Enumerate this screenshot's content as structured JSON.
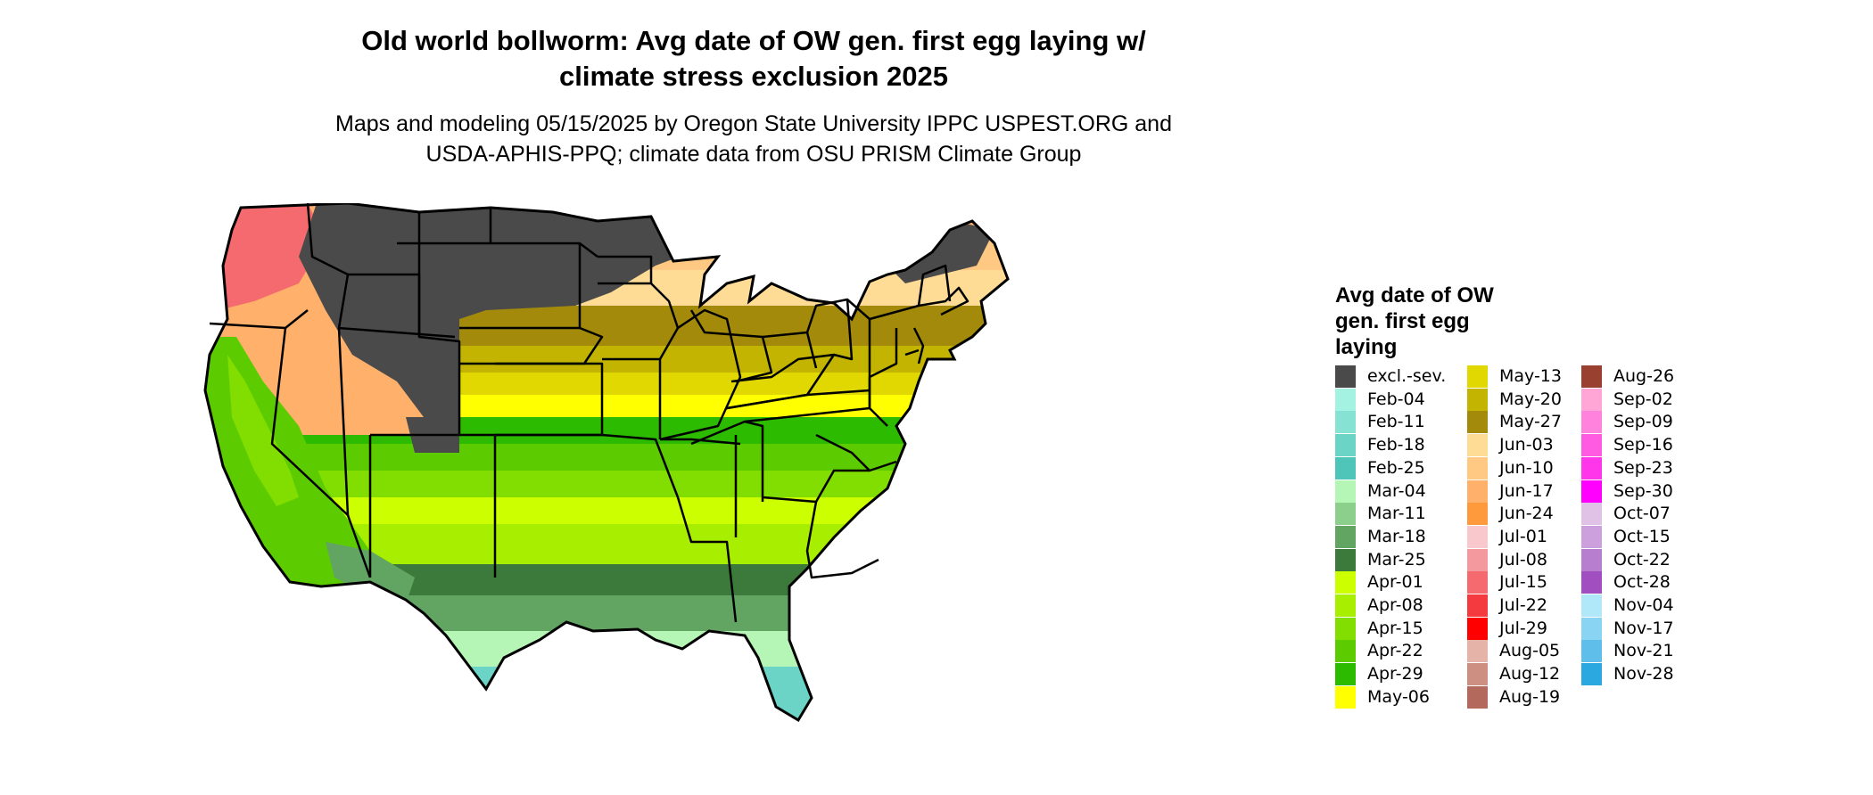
{
  "title": {
    "line1": "Old world bollworm: Avg date of OW gen. first egg laying w/",
    "line2": "climate stress exclusion 2025"
  },
  "subtitle": {
    "line1": "Maps and modeling 05/15/2025 by Oregon State University IPPC USPEST.ORG and",
    "line2": "USDA-APHIS-PPQ; climate data from OSU PRISM Climate Group"
  },
  "legend": {
    "title_lines": [
      "Avg date of OW",
      "gen. first egg",
      "laying"
    ],
    "columns": [
      [
        {
          "label": "excl.-sev.",
          "color": "#4a4a4a"
        },
        {
          "label": "Feb-04",
          "color": "#a3f2e2"
        },
        {
          "label": "Feb-11",
          "color": "#86e3d3"
        },
        {
          "label": "Feb-18",
          "color": "#6cd4c6"
        },
        {
          "label": "Feb-25",
          "color": "#4fc4b8"
        },
        {
          "label": "Mar-04",
          "color": "#b5f5b5"
        },
        {
          "label": "Mar-11",
          "color": "#8ccf8c"
        },
        {
          "label": "Mar-18",
          "color": "#62a462"
        },
        {
          "label": "Mar-25",
          "color": "#3b7a3b"
        },
        {
          "label": "Apr-01",
          "color": "#ccff00"
        },
        {
          "label": "Apr-08",
          "color": "#a8ee00"
        },
        {
          "label": "Apr-15",
          "color": "#82dd00"
        },
        {
          "label": "Apr-22",
          "color": "#5ccc00"
        },
        {
          "label": "Apr-29",
          "color": "#2dbb00"
        },
        {
          "label": "May-06",
          "color": "#ffff00"
        }
      ],
      [
        {
          "label": "May-13",
          "color": "#e0d800"
        },
        {
          "label": "May-20",
          "color": "#c2b400"
        },
        {
          "label": "May-27",
          "color": "#a38a0a"
        },
        {
          "label": "Jun-03",
          "color": "#ffdc96"
        },
        {
          "label": "Jun-10",
          "color": "#ffc983"
        },
        {
          "label": "Jun-17",
          "color": "#ffb06a"
        },
        {
          "label": "Jun-24",
          "color": "#ff9a3c"
        },
        {
          "label": "Jul-01",
          "color": "#f8c8cc"
        },
        {
          "label": "Jul-08",
          "color": "#f49a9e"
        },
        {
          "label": "Jul-15",
          "color": "#f46a6e"
        },
        {
          "label": "Jul-22",
          "color": "#f43a3e"
        },
        {
          "label": "Jul-29",
          "color": "#ff0000"
        },
        {
          "label": "Aug-05",
          "color": "#e6b3a8"
        },
        {
          "label": "Aug-12",
          "color": "#cc8f82"
        },
        {
          "label": "Aug-19",
          "color": "#b3695c"
        }
      ],
      [
        {
          "label": "Aug-26",
          "color": "#9a4030"
        },
        {
          "label": "Sep-02",
          "color": "#ffa6d6"
        },
        {
          "label": "Sep-09",
          "color": "#ff82dc"
        },
        {
          "label": "Sep-16",
          "color": "#ff5ae2"
        },
        {
          "label": "Sep-23",
          "color": "#ff36ea"
        },
        {
          "label": "Sep-30",
          "color": "#ff00ff"
        },
        {
          "label": "Oct-07",
          "color": "#e0c2e6"
        },
        {
          "label": "Oct-15",
          "color": "#cca0dc"
        },
        {
          "label": "Oct-22",
          "color": "#b77ed0"
        },
        {
          "label": "Oct-28",
          "color": "#a04ec0"
        },
        {
          "label": "Nov-04",
          "color": "#b0e8fa"
        },
        {
          "label": "Nov-17",
          "color": "#88d4f2"
        },
        {
          "label": "Nov-21",
          "color": "#60bfea"
        },
        {
          "label": "Nov-28",
          "color": "#2ca8e0"
        }
      ]
    ]
  },
  "map": {
    "border_color": "#000000",
    "zone_colors": {
      "excluded": "#4a4a4a",
      "northwest_red": "#f46a6e",
      "late_orange": "#ffb06a",
      "light_orange": "#ffc983",
      "tan": "#ffdc96",
      "olive": "#a38a0a",
      "olive_mid": "#c2b400",
      "yellow_olive": "#e0d800",
      "yellow": "#ffff00",
      "green_dark": "#2dbb00",
      "green_mid": "#5ccc00",
      "green_light": "#82dd00",
      "lime": "#ccff00",
      "dark_green": "#3b7a3b",
      "gray_green": "#62a462",
      "mint": "#b5f5b5",
      "teal": "#6cd4c6"
    }
  }
}
